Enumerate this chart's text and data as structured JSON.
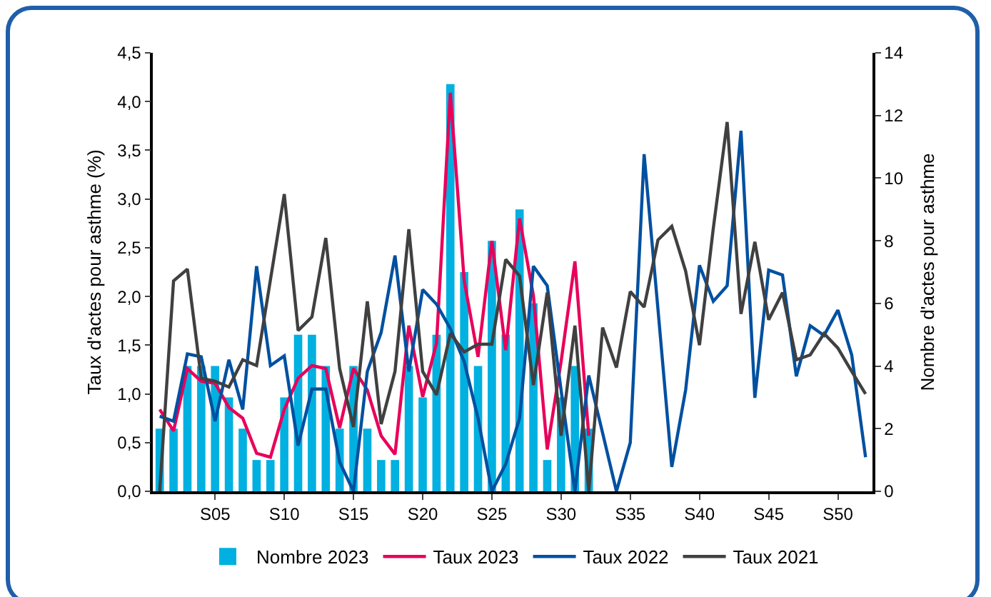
{
  "chart_data": {
    "type": "line",
    "categories": [
      null,
      null,
      null,
      null,
      "S05",
      null,
      null,
      null,
      null,
      "S10",
      null,
      null,
      null,
      null,
      "S15",
      null,
      null,
      null,
      null,
      "S20",
      null,
      null,
      null,
      null,
      "S25",
      null,
      null,
      null,
      null,
      "S30",
      null,
      null,
      null,
      null,
      "S35",
      null,
      null,
      null,
      null,
      "S40",
      null,
      null,
      null,
      null,
      "S45",
      null,
      null,
      null,
      null,
      "S50",
      null,
      null
    ],
    "ylabel": "Taux d'actes pour asthme (%)",
    "y2label": "Nombre d'actes pour asthme",
    "ylim": [
      0,
      4.5
    ],
    "yticks": [
      {
        "value": 0,
        "label": "0,0"
      },
      {
        "value": 0.5,
        "label": "0,5"
      },
      {
        "value": 1,
        "label": "1,0"
      },
      {
        "value": 1.5,
        "label": "1,5"
      },
      {
        "value": 2,
        "label": "2,0"
      },
      {
        "value": 2.5,
        "label": "2,5"
      },
      {
        "value": 3,
        "label": "3,0"
      },
      {
        "value": 3.5,
        "label": "3,5"
      },
      {
        "value": 4,
        "label": "4,0"
      },
      {
        "value": 4.5,
        "label": "4,5"
      }
    ],
    "y2lim": [
      0,
      14
    ],
    "y2ticks": [
      0,
      2,
      4,
      6,
      8,
      10,
      12,
      14
    ],
    "grid": false,
    "legend": "bottom",
    "marker": "none",
    "line_style": "solid",
    "series": [
      {
        "name": "Nombre 2023",
        "type": "bar",
        "axis": "y2",
        "color": "#00b0e0",
        "values": [
          2,
          2,
          4,
          4,
          4,
          3,
          2,
          1,
          1,
          3,
          5,
          5,
          4,
          2,
          4,
          2,
          1,
          1,
          4,
          3,
          5,
          13,
          7,
          4,
          8,
          5,
          9,
          6,
          1,
          3,
          4,
          2,
          null,
          null,
          null,
          null,
          null,
          null,
          null,
          null,
          null,
          null,
          null,
          null,
          null,
          null,
          null,
          null,
          null,
          null,
          null,
          null
        ]
      },
      {
        "name": "Taux 2023",
        "color": "#e8005a",
        "values": [
          0.84,
          0.62,
          1.26,
          1.13,
          1.11,
          0.86,
          0.75,
          0.39,
          0.35,
          0.84,
          1.16,
          1.29,
          1.26,
          0.65,
          1.26,
          1.04,
          0.57,
          0.38,
          1.7,
          0.97,
          1.52,
          4.09,
          2.16,
          1.38,
          2.57,
          1.45,
          2.8,
          2.01,
          0.43,
          1.33,
          2.36,
          0.57,
          null,
          null,
          null,
          null,
          null,
          null,
          null,
          null,
          null,
          null,
          null,
          null,
          null,
          null,
          null,
          null,
          null,
          null,
          null,
          null
        ]
      },
      {
        "name": "Taux 2022",
        "color": "#0050a0",
        "values": [
          0.77,
          0.72,
          1.41,
          1.38,
          0.72,
          1.35,
          0.84,
          2.31,
          1.29,
          1.39,
          0.47,
          1.05,
          1.05,
          0.3,
          0,
          1.23,
          1.63,
          2.42,
          1.23,
          2.07,
          1.92,
          1.67,
          1.33,
          0.75,
          0,
          0.28,
          0.75,
          2.31,
          2.11,
          1.04,
          0,
          1.19,
          0.6,
          0,
          0.5,
          3.46,
          1.87,
          0.25,
          1.04,
          2.32,
          1.95,
          2.11,
          3.7,
          0.96,
          2.27,
          2.22,
          1.18,
          1.7,
          1.6,
          1.86,
          1.4,
          0.35
        ]
      },
      {
        "name": "Taux 2021",
        "color": "#404040",
        "values": [
          0,
          2.16,
          2.28,
          1.16,
          1.13,
          1.07,
          1.35,
          1.29,
          2.17,
          3.05,
          1.65,
          1.79,
          2.6,
          1.26,
          0.66,
          1.95,
          0.69,
          1.23,
          2.69,
          1.23,
          0.99,
          1.62,
          1.43,
          1.51,
          1.51,
          2.38,
          2.21,
          1.09,
          2.04,
          0.57,
          1.7,
          0,
          1.68,
          1.27,
          2.05,
          1.89,
          2.58,
          2.72,
          2.26,
          1.5,
          2.7,
          3.79,
          1.82,
          2.56,
          1.76,
          2.04,
          1.35,
          1.4,
          1.62,
          1.47,
          1.23,
          1
        ]
      }
    ]
  }
}
